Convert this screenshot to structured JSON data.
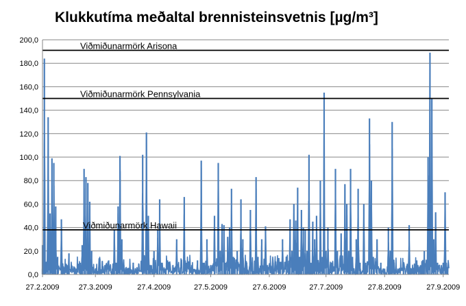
{
  "chart_data": {
    "type": "line",
    "title": "Klukkutíma meðaltal brennisteinsvetnis [µg/m³]",
    "xlabel": "",
    "ylabel": "",
    "ylim": [
      0,
      200
    ],
    "x_range": [
      "2009-02-27",
      "2009-09-30"
    ],
    "y_ticks": [
      "0,0",
      "20,0",
      "40,0",
      "60,0",
      "80,0",
      "100,0",
      "120,0",
      "140,0",
      "160,0",
      "180,0",
      "200,0"
    ],
    "x_ticks": [
      {
        "date": "2009-02-27",
        "label": "27.2.2009"
      },
      {
        "date": "2009-03-27",
        "label": "27.3.2009"
      },
      {
        "date": "2009-04-27",
        "label": "27.4.2009"
      },
      {
        "date": "2009-05-27",
        "label": "27.5.2009"
      },
      {
        "date": "2009-06-27",
        "label": "27.6.2009"
      },
      {
        "date": "2009-07-27",
        "label": "27.7.2009"
      },
      {
        "date": "2009-08-27",
        "label": "27.8.2009"
      },
      {
        "date": "2009-09-27",
        "label": "27.9.2009"
      }
    ],
    "grid": true,
    "series_color": "#4a7ebb",
    "reference_lines": [
      {
        "label": "Viðmiðunarmörk Arisona",
        "value": 191
      },
      {
        "label": "Viðmiðunarmörk Pennsylvania",
        "value": 150
      },
      {
        "label": "Viðmiðunarmörk Hawaii",
        "value": 38
      }
    ],
    "series": [
      {
        "points": [
          [
            "2009-02-27",
            5
          ],
          [
            "2009-02-27",
            25
          ],
          [
            "2009-02-28",
            184
          ],
          [
            "2009-02-28",
            10
          ],
          [
            "2009-02-28",
            30
          ],
          [
            "2009-03-01",
            8
          ],
          [
            "2009-03-02",
            134
          ],
          [
            "2009-03-02",
            20
          ],
          [
            "2009-03-03",
            52
          ],
          [
            "2009-03-03",
            10
          ],
          [
            "2009-03-04",
            99
          ],
          [
            "2009-03-04",
            5
          ],
          [
            "2009-03-05",
            35
          ],
          [
            "2009-03-05",
            95
          ],
          [
            "2009-03-06",
            8
          ],
          [
            "2009-03-06",
            58
          ],
          [
            "2009-03-07",
            15
          ],
          [
            "2009-03-07",
            4
          ],
          [
            "2009-03-09",
            10
          ],
          [
            "2009-03-09",
            47
          ],
          [
            "2009-03-10",
            3
          ],
          [
            "2009-03-12",
            8
          ],
          [
            "2009-03-13",
            18
          ],
          [
            "2009-03-13",
            3
          ],
          [
            "2009-03-17",
            5
          ],
          [
            "2009-03-19",
            10
          ],
          [
            "2009-03-20",
            25
          ],
          [
            "2009-03-21",
            90
          ],
          [
            "2009-03-21",
            20
          ],
          [
            "2009-03-22",
            83
          ],
          [
            "2009-03-22",
            30
          ],
          [
            "2009-03-23",
            78
          ],
          [
            "2009-03-23",
            25
          ],
          [
            "2009-03-24",
            45
          ],
          [
            "2009-03-24",
            62
          ],
          [
            "2009-03-25",
            20
          ],
          [
            "2009-03-26",
            5
          ],
          [
            "2009-03-28",
            3
          ],
          [
            "2009-04-01",
            8
          ],
          [
            "2009-04-03",
            12
          ],
          [
            "2009-04-05",
            5
          ],
          [
            "2009-04-06",
            38
          ],
          [
            "2009-04-07",
            10
          ],
          [
            "2009-04-08",
            58
          ],
          [
            "2009-04-09",
            88
          ],
          [
            "2009-04-09",
            101
          ],
          [
            "2009-04-10",
            30
          ],
          [
            "2009-04-11",
            8
          ],
          [
            "2009-04-13",
            5
          ],
          [
            "2009-04-16",
            10
          ],
          [
            "2009-04-18",
            6
          ],
          [
            "2009-04-21",
            102
          ],
          [
            "2009-04-21",
            10
          ],
          [
            "2009-04-23",
            121
          ],
          [
            "2009-04-23",
            15
          ],
          [
            "2009-04-24",
            50
          ],
          [
            "2009-04-25",
            8
          ],
          [
            "2009-04-27",
            20
          ],
          [
            "2009-04-29",
            38
          ],
          [
            "2009-04-30",
            64
          ],
          [
            "2009-05-01",
            10
          ],
          [
            "2009-05-03",
            5
          ],
          [
            "2009-05-07",
            8
          ],
          [
            "2009-05-09",
            30
          ],
          [
            "2009-05-11",
            6
          ],
          [
            "2009-05-13",
            66
          ],
          [
            "2009-05-14",
            10
          ],
          [
            "2009-05-17",
            8
          ],
          [
            "2009-05-20",
            12
          ],
          [
            "2009-05-22",
            97
          ],
          [
            "2009-05-23",
            10
          ],
          [
            "2009-05-25",
            30
          ],
          [
            "2009-05-27",
            8
          ],
          [
            "2009-05-29",
            50
          ],
          [
            "2009-05-31",
            95
          ],
          [
            "2009-06-01",
            20
          ],
          [
            "2009-06-02",
            43
          ],
          [
            "2009-06-03",
            42
          ],
          [
            "2009-06-04",
            10
          ],
          [
            "2009-06-05",
            32
          ],
          [
            "2009-06-06",
            40
          ],
          [
            "2009-06-07",
            73
          ],
          [
            "2009-06-08",
            15
          ],
          [
            "2009-06-10",
            20
          ],
          [
            "2009-06-12",
            64
          ],
          [
            "2009-06-13",
            30
          ],
          [
            "2009-06-15",
            10
          ],
          [
            "2009-06-17",
            55
          ],
          [
            "2009-06-18",
            10
          ],
          [
            "2009-06-20",
            83
          ],
          [
            "2009-06-21",
            15
          ],
          [
            "2009-06-23",
            30
          ],
          [
            "2009-06-25",
            41
          ],
          [
            "2009-06-26",
            8
          ],
          [
            "2009-06-29",
            10
          ],
          [
            "2009-07-02",
            14
          ],
          [
            "2009-07-04",
            30
          ],
          [
            "2009-07-06",
            15
          ],
          [
            "2009-07-08",
            47
          ],
          [
            "2009-07-09",
            20
          ],
          [
            "2009-07-10",
            60
          ],
          [
            "2009-07-11",
            46
          ],
          [
            "2009-07-12",
            74
          ],
          [
            "2009-07-13",
            15
          ],
          [
            "2009-07-14",
            55
          ],
          [
            "2009-07-15",
            40
          ],
          [
            "2009-07-16",
            38
          ],
          [
            "2009-07-17",
            20
          ],
          [
            "2009-07-18",
            102
          ],
          [
            "2009-07-19",
            10
          ],
          [
            "2009-07-20",
            45
          ],
          [
            "2009-07-21",
            30
          ],
          [
            "2009-07-22",
            50
          ],
          [
            "2009-07-23",
            10
          ],
          [
            "2009-07-24",
            80
          ],
          [
            "2009-07-25",
            15
          ],
          [
            "2009-07-26",
            155
          ],
          [
            "2009-07-27",
            20
          ],
          [
            "2009-07-28",
            40
          ],
          [
            "2009-07-30",
            10
          ],
          [
            "2009-08-01",
            90
          ],
          [
            "2009-08-02",
            20
          ],
          [
            "2009-08-04",
            35
          ],
          [
            "2009-08-06",
            77
          ],
          [
            "2009-08-07",
            60
          ],
          [
            "2009-08-08",
            20
          ],
          [
            "2009-08-09",
            90
          ],
          [
            "2009-08-10",
            15
          ],
          [
            "2009-08-12",
            30
          ],
          [
            "2009-08-13",
            73
          ],
          [
            "2009-08-14",
            10
          ],
          [
            "2009-08-16",
            60
          ],
          [
            "2009-08-17",
            10
          ],
          [
            "2009-08-19",
            133
          ],
          [
            "2009-08-20",
            80
          ],
          [
            "2009-08-21",
            15
          ],
          [
            "2009-08-23",
            30
          ],
          [
            "2009-08-25",
            10
          ],
          [
            "2009-08-27",
            5
          ],
          [
            "2009-08-29",
            40
          ],
          [
            "2009-08-30",
            20
          ],
          [
            "2009-08-31",
            130
          ],
          [
            "2009-09-01",
            10
          ],
          [
            "2009-09-03",
            5
          ],
          [
            "2009-09-06",
            10
          ],
          [
            "2009-09-09",
            42
          ],
          [
            "2009-09-10",
            5
          ],
          [
            "2009-09-13",
            12
          ],
          [
            "2009-09-15",
            8
          ],
          [
            "2009-09-17",
            20
          ],
          [
            "2009-09-19",
            100
          ],
          [
            "2009-09-20",
            189
          ],
          [
            "2009-09-21",
            150
          ],
          [
            "2009-09-22",
            30
          ],
          [
            "2009-09-23",
            53
          ],
          [
            "2009-09-24",
            10
          ],
          [
            "2009-09-26",
            8
          ],
          [
            "2009-09-27",
            10
          ],
          [
            "2009-09-28",
            70
          ],
          [
            "2009-09-29",
            5
          ]
        ]
      }
    ]
  }
}
